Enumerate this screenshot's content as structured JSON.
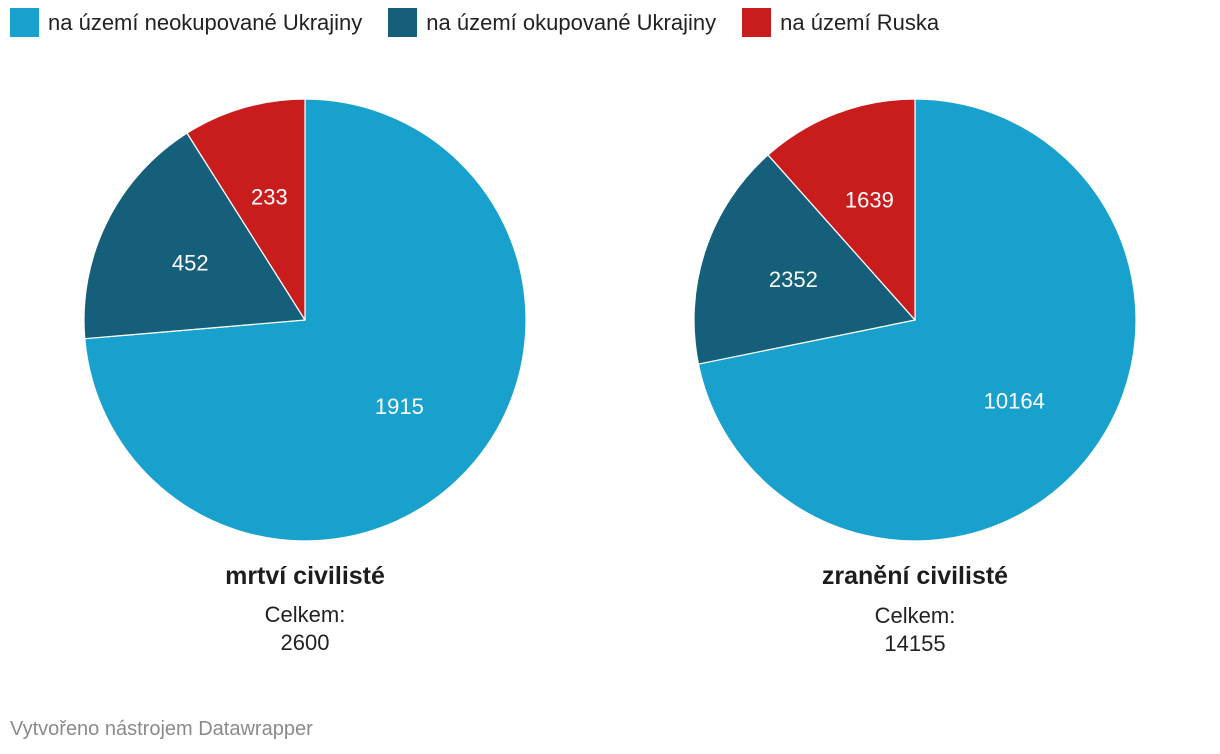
{
  "legend": [
    {
      "label": "na území neokupované Ukrajiny",
      "color": "#18a1cd"
    },
    {
      "label": "na území okupované Ukrajiny",
      "color": "#155f7a"
    },
    {
      "label": "na území Ruska",
      "color": "#c91d1d"
    }
  ],
  "chart_data": [
    {
      "type": "pie",
      "title": "mrtví civilisté",
      "total_label": "Celkem:",
      "total_value": "2600",
      "slices": [
        {
          "label": "na území neokupované Ukrajiny",
          "value": 1915,
          "color": "#18a1cd"
        },
        {
          "label": "na území okupované Ukrajiny",
          "value": 452,
          "color": "#155f7a"
        },
        {
          "label": "na území Ruska",
          "value": 233,
          "color": "#c91d1d"
        }
      ]
    },
    {
      "type": "pie",
      "title": "zranění civilisté",
      "total_label": "Celkem:",
      "total_value": "14155",
      "slices": [
        {
          "label": "na území neokupované Ukrajiny",
          "value": 10164,
          "color": "#18a1cd"
        },
        {
          "label": "na území okupované Ukrajiny",
          "value": 2352,
          "color": "#155f7a"
        },
        {
          "label": "na území Ruska",
          "value": 1639,
          "color": "#c91d1d"
        }
      ]
    }
  ],
  "footer": "Vytvořeno nástrojem Datawrapper"
}
